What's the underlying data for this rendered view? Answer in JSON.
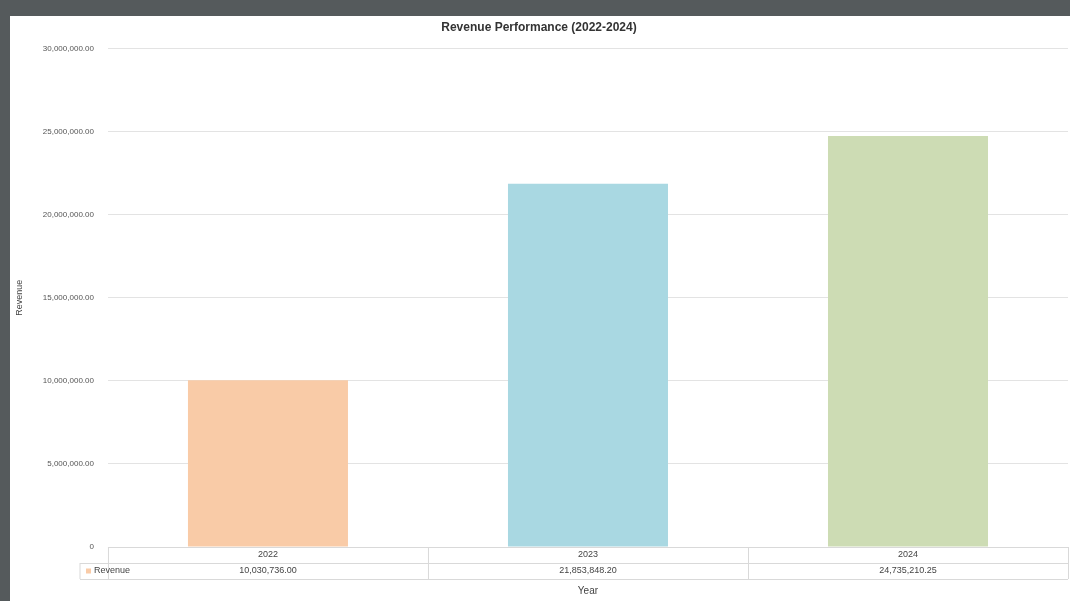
{
  "chart_data": {
    "type": "bar",
    "title": "Revenue Performance (2022-2024)",
    "xlabel": "Year",
    "ylabel": "Revenue",
    "categories": [
      "2022",
      "2023",
      "2024"
    ],
    "series": [
      {
        "name": "Revenue",
        "color": "#f9cba7",
        "colors": [
          "#f9cba7",
          "#a9d8e2",
          "#cddcb4"
        ],
        "values": [
          10030736,
          21853848.2,
          24735210.25
        ],
        "value_labels": [
          "10,030,736.00",
          "21,853,848.20",
          "24,735,210.25"
        ]
      }
    ],
    "ylim": [
      0,
      30000000
    ],
    "yticks": [
      {
        "value": 0,
        "label": "0"
      },
      {
        "value": 5000000,
        "label": "5,000,000.00"
      },
      {
        "value": 10000000,
        "label": "10,000,000.00"
      },
      {
        "value": 15000000,
        "label": "15,000,000.00"
      },
      {
        "value": 20000000,
        "label": "20,000,000.00"
      },
      {
        "value": 25000000,
        "label": "25,000,000.00"
      },
      {
        "value": 30000000,
        "label": "30,000,000.00"
      }
    ],
    "grid": "y",
    "legend": "bottom"
  }
}
